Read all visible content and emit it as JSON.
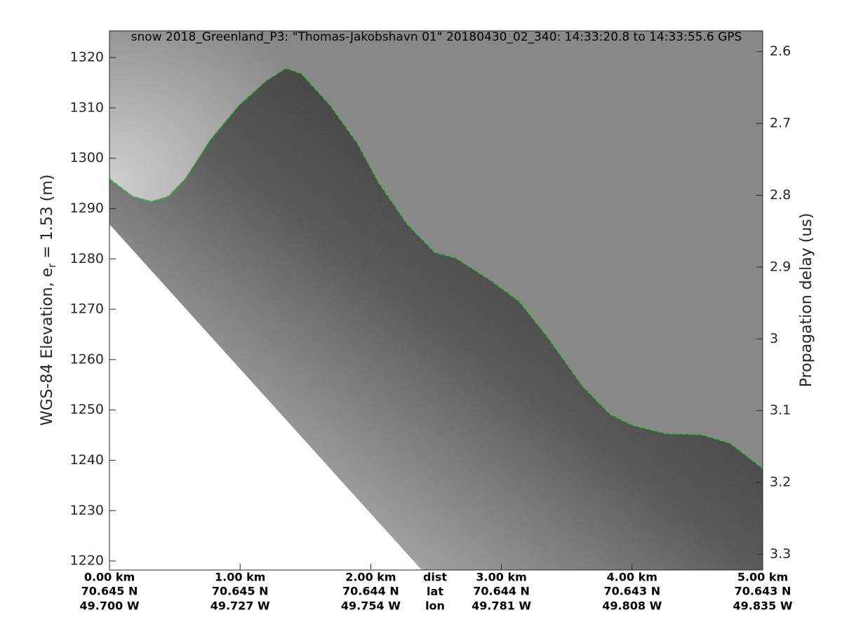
{
  "chart_data": {
    "type": "echogram",
    "title": "snow 2018_Greenland_P3: \"Thomas-Jakobshavn 01\"  20180430_02_340: 14:33:20.8 to 14:33:55.6 GPS",
    "ylabel_parts": [
      "WGS-84 Elevation, e",
      "r",
      " = 1.53 (m)"
    ],
    "y2label": "Propagation delay (us)",
    "row_labels": [
      "dist",
      "lat",
      "lon"
    ],
    "xlim": [
      0,
      5
    ],
    "xticks": [
      {
        "value": 0,
        "label": "0.00 km"
      },
      {
        "value": 1,
        "label": "1.00 km"
      },
      {
        "value": 2,
        "label": "2.00 km"
      },
      {
        "value": 3,
        "label": "3.00 km"
      },
      {
        "value": 4,
        "label": "4.00 km"
      },
      {
        "value": 5,
        "label": "5.00 km"
      }
    ],
    "lat_labels": [
      "70.645 N",
      "70.645 N",
      "70.644 N",
      "70.644 N",
      "70.643 N",
      "70.643 N"
    ],
    "lon_labels": [
      "49.700 W",
      "49.727 W",
      "49.754 W",
      "49.781 W",
      "49.808 W",
      "49.835 W"
    ],
    "ylim": [
      1218.2,
      1325.3
    ],
    "yticks": [
      1220,
      1230,
      1240,
      1250,
      1260,
      1270,
      1280,
      1290,
      1300,
      1310,
      1320
    ],
    "y2lim": [
      3.322,
      2.571
    ],
    "y2ticks": [
      2.6,
      2.7,
      2.8,
      2.9,
      3,
      3.1,
      3.2,
      3.3
    ],
    "grid": false,
    "series": [
      {
        "color": "#22cc22",
        "x": [
          0,
          0.18,
          0.32,
          0.45,
          0.58,
          0.77,
          0.99,
          1.2,
          1.35,
          1.47,
          1.69,
          1.9,
          2.06,
          2.28,
          2.49,
          2.65,
          2.92,
          3.14,
          3.35,
          3.62,
          3.83,
          4.0,
          4.26,
          4.53,
          4.75,
          5.0
        ],
        "values": [
          1295.9,
          1292.4,
          1291.4,
          1292.4,
          1295.9,
          1303.6,
          1310.5,
          1315.4,
          1317.9,
          1316.8,
          1310.5,
          1302.9,
          1295.2,
          1286.9,
          1281.3,
          1280.2,
          1275.7,
          1271.5,
          1264.6,
          1254.8,
          1249.2,
          1247.0,
          1245.3,
          1245.1,
          1243.4,
          1238.4
        ]
      }
    ]
  }
}
